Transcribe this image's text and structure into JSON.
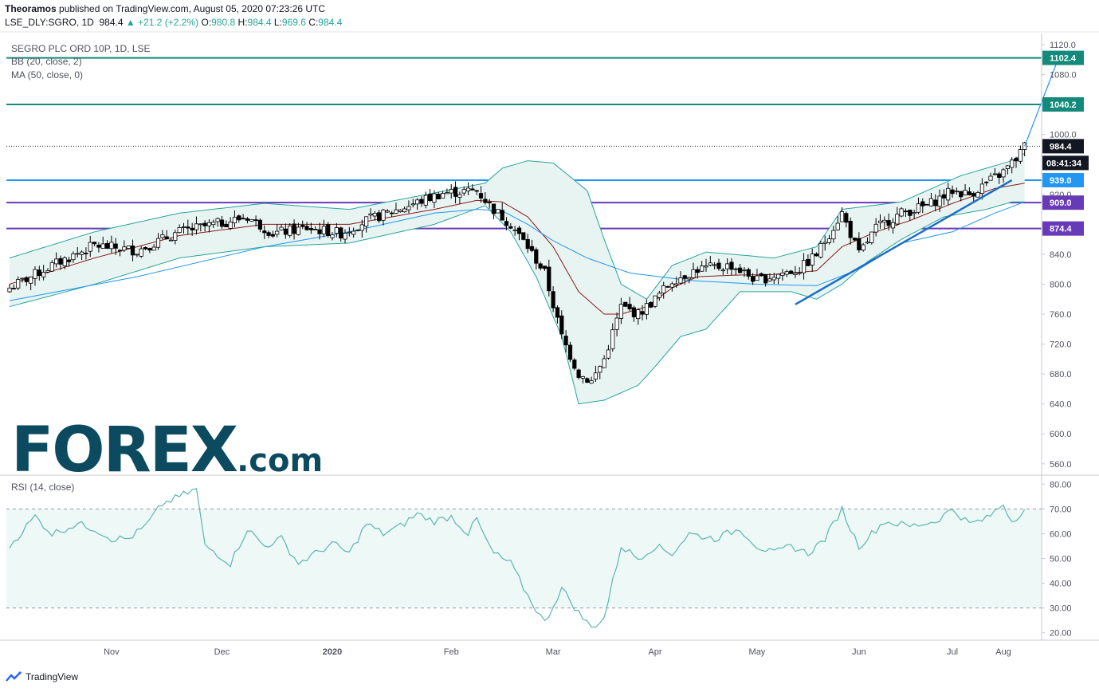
{
  "header": {
    "author": "Theoramos",
    "published": "published on TradingView.com, August 05, 2020 07:23:26 UTC",
    "symbol": "LSE_DLY:SGRO, 1D",
    "last": "984.4",
    "change": "▲ +21.2 (+2.2%)",
    "o_label": "O:",
    "o": "980.8",
    "h_label": "H:",
    "h": "984.4",
    "l_label": "L:",
    "l": "969.6",
    "c_label": "C:",
    "c": "984.4"
  },
  "legend": {
    "title": "SEGRO PLC ORD 10P, 1D, LSE",
    "bb": "BB (20, close, 2)",
    "ma": "MA (50, close, 0)",
    "rsi": "RSI (14, close)"
  },
  "colors": {
    "up": "#ffffff",
    "down": "#000000",
    "candle_outline": "#000000",
    "bb_band": "#26a69a",
    "bb_fill": "#e8f4f2",
    "bb_basis": "#8b1a1a",
    "ma": "#2196f3",
    "teal_level": "#138a7a",
    "blue_level": "#2196f3",
    "purple_level": "#673ab7",
    "rsi_line": "#5bb6ad",
    "rsi_fill": "#eef8f7",
    "trendline": "#1e6fc4",
    "grid_text": "#50535e"
  },
  "logo": {
    "text_big": "FOREX",
    "text_com": ".com"
  },
  "footer": {
    "brand": "TradingView"
  },
  "countdown": "08:41:34",
  "chart_data": [
    {
      "type": "candlestick",
      "title": "SEGRO PLC ORD 10P, 1D, LSE",
      "x_axis_labels": [
        "Nov",
        "Dec",
        "2020",
        "Feb",
        "Mar",
        "Apr",
        "May",
        "Jun",
        "Jul",
        "Aug"
      ],
      "y_axis_labels": [
        "1120.0",
        "1080.0",
        "1000.0",
        "920.0",
        "840.0",
        "800.0",
        "760.0",
        "720.0",
        "680.0",
        "640.0",
        "600.0",
        "560.0"
      ],
      "ylim": [
        547,
        1135
      ],
      "price_labels": [
        {
          "value": 1102.4,
          "text": "1102.4",
          "style": "teal"
        },
        {
          "value": 1040.2,
          "text": "1040.2",
          "style": "teal"
        },
        {
          "value": 984.4,
          "text": "984.4",
          "style": "last"
        },
        {
          "value": 939.0,
          "text": "939.0",
          "style": "blue"
        },
        {
          "value": 909.0,
          "text": "909.0",
          "style": "purple"
        },
        {
          "value": 874.4,
          "text": "874.4",
          "style": "purple"
        }
      ],
      "horizontal_levels": [
        {
          "value": 1102.4,
          "style": "teal"
        },
        {
          "value": 1040.2,
          "style": "teal"
        },
        {
          "value": 939.0,
          "style": "blue"
        },
        {
          "value": 909.0,
          "style": "purple"
        },
        {
          "value": 874.4,
          "style": "purple"
        }
      ],
      "last_price": 984.4,
      "close_anchors": [
        [
          0,
          795
        ],
        [
          10,
          825
        ],
        [
          20,
          852
        ],
        [
          30,
          845
        ],
        [
          40,
          870
        ],
        [
          50,
          882
        ],
        [
          56,
          890
        ],
        [
          62,
          868
        ],
        [
          70,
          875
        ],
        [
          78,
          868
        ],
        [
          84,
          885
        ],
        [
          94,
          905
        ],
        [
          102,
          922
        ],
        [
          110,
          925
        ],
        [
          114,
          900
        ],
        [
          118,
          880
        ],
        [
          122,
          850
        ],
        [
          126,
          815
        ],
        [
          130,
          730
        ],
        [
          134,
          680
        ],
        [
          137,
          670
        ],
        [
          140,
          700
        ],
        [
          144,
          770
        ],
        [
          148,
          760
        ],
        [
          152,
          780
        ],
        [
          156,
          805
        ],
        [
          162,
          820
        ],
        [
          170,
          825
        ],
        [
          176,
          805
        ],
        [
          182,
          815
        ],
        [
          186,
          820
        ],
        [
          190,
          840
        ],
        [
          196,
          895
        ],
        [
          200,
          840
        ],
        [
          204,
          875
        ],
        [
          210,
          895
        ],
        [
          216,
          905
        ],
        [
          222,
          925
        ],
        [
          226,
          920
        ],
        [
          230,
          935
        ],
        [
          234,
          950
        ],
        [
          237,
          968
        ],
        [
          239,
          984.4
        ]
      ],
      "bb_upper_anchors": [
        [
          0,
          835
        ],
        [
          20,
          870
        ],
        [
          40,
          895
        ],
        [
          60,
          908
        ],
        [
          80,
          900
        ],
        [
          100,
          922
        ],
        [
          112,
          935
        ],
        [
          116,
          955
        ],
        [
          122,
          965
        ],
        [
          128,
          962
        ],
        [
          136,
          925
        ],
        [
          140,
          860
        ],
        [
          144,
          800
        ],
        [
          150,
          780
        ],
        [
          156,
          825
        ],
        [
          164,
          843
        ],
        [
          180,
          835
        ],
        [
          190,
          850
        ],
        [
          196,
          900
        ],
        [
          210,
          910
        ],
        [
          224,
          945
        ],
        [
          236,
          965
        ],
        [
          239,
          975
        ]
      ],
      "bb_lower_anchors": [
        [
          0,
          770
        ],
        [
          20,
          800
        ],
        [
          40,
          835
        ],
        [
          60,
          850
        ],
        [
          80,
          855
        ],
        [
          100,
          880
        ],
        [
          112,
          905
        ],
        [
          118,
          870
        ],
        [
          124,
          810
        ],
        [
          130,
          730
        ],
        [
          134,
          640
        ],
        [
          140,
          645
        ],
        [
          148,
          665
        ],
        [
          152,
          690
        ],
        [
          158,
          730
        ],
        [
          164,
          740
        ],
        [
          172,
          790
        ],
        [
          184,
          790
        ],
        [
          190,
          780
        ],
        [
          196,
          800
        ],
        [
          202,
          830
        ],
        [
          210,
          860
        ],
        [
          220,
          890
        ],
        [
          230,
          900
        ],
        [
          236,
          910
        ],
        [
          239,
          910
        ]
      ],
      "bb_basis_anchors": [
        [
          0,
          800
        ],
        [
          20,
          835
        ],
        [
          40,
          865
        ],
        [
          60,
          880
        ],
        [
          80,
          880
        ],
        [
          100,
          900
        ],
        [
          110,
          912
        ],
        [
          116,
          910
        ],
        [
          122,
          890
        ],
        [
          128,
          850
        ],
        [
          134,
          790
        ],
        [
          140,
          760
        ],
        [
          144,
          760
        ],
        [
          150,
          770
        ],
        [
          156,
          795
        ],
        [
          162,
          810
        ],
        [
          170,
          812
        ],
        [
          180,
          813
        ],
        [
          190,
          818
        ],
        [
          196,
          850
        ],
        [
          204,
          870
        ],
        [
          212,
          885
        ],
        [
          222,
          908
        ],
        [
          232,
          928
        ],
        [
          239,
          935
        ]
      ],
      "ma50_anchors": [
        [
          0,
          778
        ],
        [
          30,
          810
        ],
        [
          60,
          850
        ],
        [
          80,
          870
        ],
        [
          100,
          895
        ],
        [
          110,
          900
        ],
        [
          116,
          898
        ],
        [
          122,
          880
        ],
        [
          128,
          858
        ],
        [
          136,
          835
        ],
        [
          146,
          815
        ],
        [
          160,
          805
        ],
        [
          176,
          800
        ],
        [
          190,
          798
        ],
        [
          200,
          820
        ],
        [
          210,
          855
        ],
        [
          222,
          870
        ],
        [
          232,
          895
        ],
        [
          239,
          910
        ]
      ],
      "trendline": {
        "from": [
          185,
          773
        ],
        "to": [
          236,
          939
        ]
      },
      "projection_arrow": {
        "from": [
          239,
          984.4
        ],
        "to": [
          247,
          1102.4
        ]
      }
    },
    {
      "type": "line",
      "title": "RSI (14, close)",
      "y_axis_labels": [
        "80.00",
        "70.00",
        "60.00",
        "50.00",
        "40.00",
        "30.00",
        "20.00"
      ],
      "ylim": [
        17,
        83
      ],
      "bands": [
        30,
        70
      ],
      "rsi_anchors": [
        [
          0,
          55
        ],
        [
          6,
          67
        ],
        [
          10,
          60
        ],
        [
          16,
          64
        ],
        [
          20,
          62
        ],
        [
          24,
          58
        ],
        [
          28,
          58
        ],
        [
          32,
          63
        ],
        [
          36,
          72
        ],
        [
          40,
          75
        ],
        [
          44,
          78
        ],
        [
          46,
          55
        ],
        [
          48,
          53
        ],
        [
          52,
          48
        ],
        [
          56,
          62
        ],
        [
          60,
          55
        ],
        [
          64,
          58
        ],
        [
          68,
          48
        ],
        [
          72,
          52
        ],
        [
          76,
          56
        ],
        [
          80,
          52
        ],
        [
          84,
          64
        ],
        [
          88,
          60
        ],
        [
          92,
          63
        ],
        [
          96,
          68
        ],
        [
          100,
          65
        ],
        [
          104,
          67
        ],
        [
          108,
          60
        ],
        [
          110,
          66
        ],
        [
          112,
          58
        ],
        [
          114,
          52
        ],
        [
          118,
          48
        ],
        [
          122,
          35
        ],
        [
          126,
          24
        ],
        [
          130,
          38
        ],
        [
          134,
          28
        ],
        [
          137,
          22
        ],
        [
          140,
          26
        ],
        [
          144,
          55
        ],
        [
          148,
          50
        ],
        [
          152,
          55
        ],
        [
          156,
          52
        ],
        [
          160,
          60
        ],
        [
          166,
          58
        ],
        [
          172,
          62
        ],
        [
          176,
          55
        ],
        [
          180,
          52
        ],
        [
          184,
          55
        ],
        [
          188,
          52
        ],
        [
          192,
          58
        ],
        [
          196,
          70
        ],
        [
          198,
          62
        ],
        [
          200,
          55
        ],
        [
          206,
          65
        ],
        [
          212,
          63
        ],
        [
          218,
          65
        ],
        [
          222,
          70
        ],
        [
          226,
          64
        ],
        [
          230,
          66
        ],
        [
          234,
          72
        ],
        [
          236,
          65
        ],
        [
          239,
          70
        ]
      ]
    }
  ]
}
